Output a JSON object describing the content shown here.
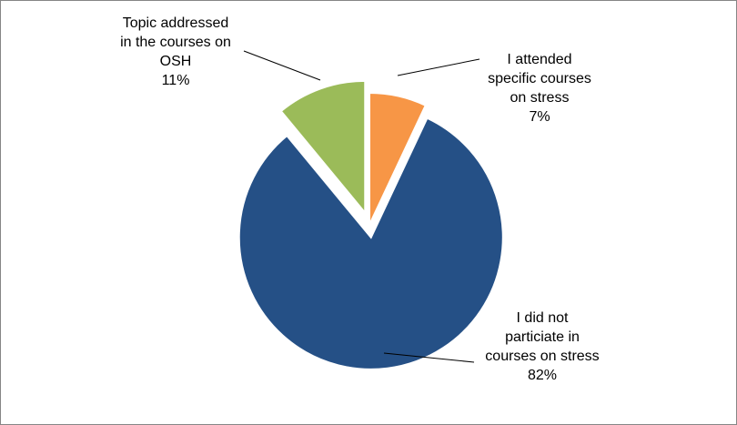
{
  "chart_data": {
    "type": "pie",
    "title": "",
    "slices": [
      {
        "key": "attended",
        "label_lines": [
          "I attended",
          "specific courses",
          "on stress"
        ],
        "value": 7,
        "value_label": "7%",
        "color": "#F79646",
        "exploded": false
      },
      {
        "key": "did_not",
        "label_lines": [
          "I did not",
          "particiate in",
          "courses on stress"
        ],
        "value": 82,
        "value_label": "82%",
        "color": "#255086",
        "exploded": true
      },
      {
        "key": "osh",
        "label_lines": [
          "Topic addressed",
          "in the courses on",
          "OSH"
        ],
        "value": 11,
        "value_label": "11%",
        "color": "#9BBB59",
        "exploded": true
      }
    ],
    "legend": "none",
    "data_labels": "outside with leader lines"
  }
}
